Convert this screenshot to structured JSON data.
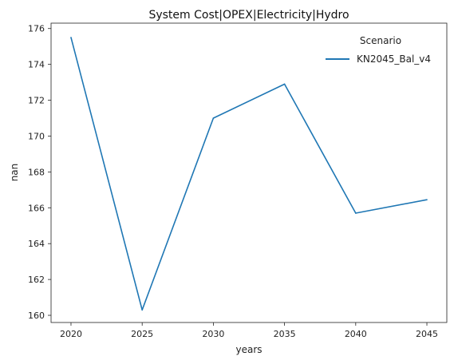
{
  "chart_data": {
    "type": "line",
    "title": "System Cost|OPEX|Electricity|Hydro",
    "xlabel": "years",
    "ylabel": "nan",
    "x": [
      2020,
      2025,
      2030,
      2035,
      2040,
      2045
    ],
    "xticks": [
      2020,
      2025,
      2030,
      2035,
      2040,
      2045
    ],
    "yticks": [
      160,
      162,
      164,
      166,
      168,
      170,
      172,
      174,
      176
    ],
    "xlim": [
      2018.6,
      2046.4
    ],
    "ylim": [
      159.6,
      176.3
    ],
    "grid": false,
    "legend": {
      "title": "Scenario",
      "placement": "top-right"
    },
    "series": [
      {
        "name": "KN2045_Bal_v4",
        "color": "#1f77b4",
        "values": [
          175.5,
          160.3,
          171.0,
          172.9,
          165.7,
          166.45
        ]
      }
    ]
  }
}
